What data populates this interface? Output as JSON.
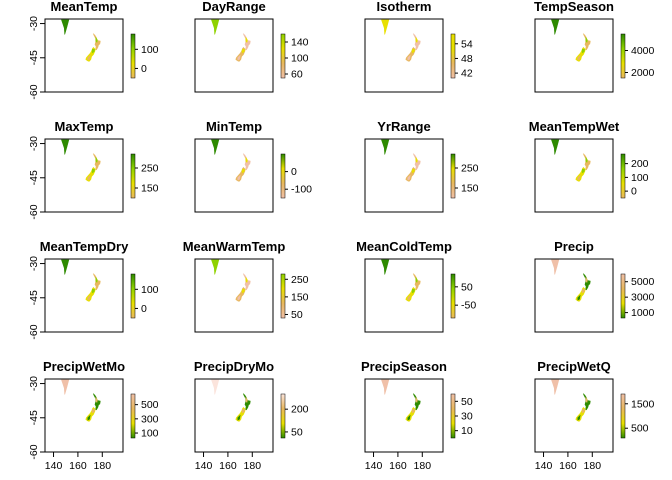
{
  "chart_data": {
    "type": "heatmap",
    "layout": {
      "rows": 4,
      "cols": 4
    },
    "shared_axes": {
      "x_range": [
        133,
        197
      ],
      "y_range": [
        -60,
        -28
      ],
      "x_ticks": [
        140,
        160,
        180
      ],
      "y_ticks": [
        -30,
        -45,
        -60
      ],
      "x_ticks_labeled_row": 3,
      "y_ticks_labeled_col": 0
    },
    "colors": {
      "green": "#2e8b00",
      "lime": "#8fd200",
      "yellow": "#e8e000",
      "tan": "#e8b860",
      "peach": "#f0c0a8",
      "pale": "#fbe4dc"
    },
    "panels": [
      {
        "title": "MeanTemp",
        "legend_ticks": [
          0,
          100
        ],
        "legend_range": [
          -50,
          180
        ],
        "palette": [
          "green",
          "lime",
          "yellow",
          "tan"
        ]
      },
      {
        "title": "DayRange",
        "legend_ticks": [
          60,
          100,
          140
        ],
        "legend_range": [
          50,
          160
        ],
        "palette": [
          "lime",
          "yellow",
          "tan",
          "peach"
        ]
      },
      {
        "title": "Isotherm",
        "legend_ticks": [
          42,
          48,
          54
        ],
        "legend_range": [
          40,
          58
        ],
        "palette": [
          "yellow",
          "yellow",
          "tan",
          "peach"
        ]
      },
      {
        "title": "TempSeason",
        "legend_ticks": [
          2000,
          4000
        ],
        "legend_range": [
          1500,
          5500
        ],
        "palette": [
          "green",
          "lime",
          "yellow",
          "tan"
        ]
      },
      {
        "title": "MaxTemp",
        "legend_ticks": [
          150,
          250
        ],
        "legend_range": [
          100,
          320
        ],
        "palette": [
          "green",
          "lime",
          "yellow",
          "tan"
        ]
      },
      {
        "title": "MinTemp",
        "legend_ticks": [
          -100,
          0
        ],
        "legend_range": [
          -150,
          100
        ],
        "palette": [
          "green",
          "yellow",
          "tan",
          "peach"
        ]
      },
      {
        "title": "YrRange",
        "legend_ticks": [
          150,
          250
        ],
        "legend_range": [
          100,
          320
        ],
        "palette": [
          "green",
          "yellow",
          "tan",
          "peach"
        ]
      },
      {
        "title": "MeanTempWet",
        "legend_ticks": [
          0,
          100,
          200
        ],
        "legend_range": [
          -50,
          270
        ],
        "palette": [
          "green",
          "lime",
          "yellow",
          "tan"
        ]
      },
      {
        "title": "MeanTempDry",
        "legend_ticks": [
          0,
          100
        ],
        "legend_range": [
          -50,
          180
        ],
        "palette": [
          "green",
          "lime",
          "yellow",
          "tan"
        ]
      },
      {
        "title": "MeanWarmTemp",
        "legend_ticks": [
          50,
          150,
          250
        ],
        "legend_range": [
          30,
          280
        ],
        "palette": [
          "lime",
          "yellow",
          "tan",
          "peach"
        ]
      },
      {
        "title": "MeanColdTemp",
        "legend_ticks": [
          -50,
          50
        ],
        "legend_range": [
          -120,
          120
        ],
        "palette": [
          "green",
          "lime",
          "yellow",
          "tan"
        ]
      },
      {
        "title": "Precip",
        "legend_ticks": [
          1000,
          3000,
          5000
        ],
        "legend_range": [
          300,
          6000
        ],
        "palette": [
          "peach",
          "tan",
          "yellow",
          "green"
        ]
      },
      {
        "title": "PrecipWetMo",
        "legend_ticks": [
          100,
          300,
          500
        ],
        "legend_range": [
          30,
          650
        ],
        "palette": [
          "peach",
          "tan",
          "yellow",
          "green"
        ]
      },
      {
        "title": "PrecipDryMo",
        "legend_ticks": [
          50,
          200
        ],
        "legend_range": [
          10,
          300
        ],
        "palette": [
          "pale",
          "tan",
          "yellow",
          "green"
        ]
      },
      {
        "title": "PrecipSeason",
        "legend_ticks": [
          10,
          30,
          50
        ],
        "legend_range": [
          0,
          60
        ],
        "palette": [
          "peach",
          "tan",
          "yellow",
          "green"
        ]
      },
      {
        "title": "PrecipWetQ",
        "legend_ticks": [
          500,
          1500
        ],
        "legend_range": [
          100,
          1900
        ],
        "palette": [
          "peach",
          "tan",
          "yellow",
          "green"
        ]
      }
    ]
  }
}
